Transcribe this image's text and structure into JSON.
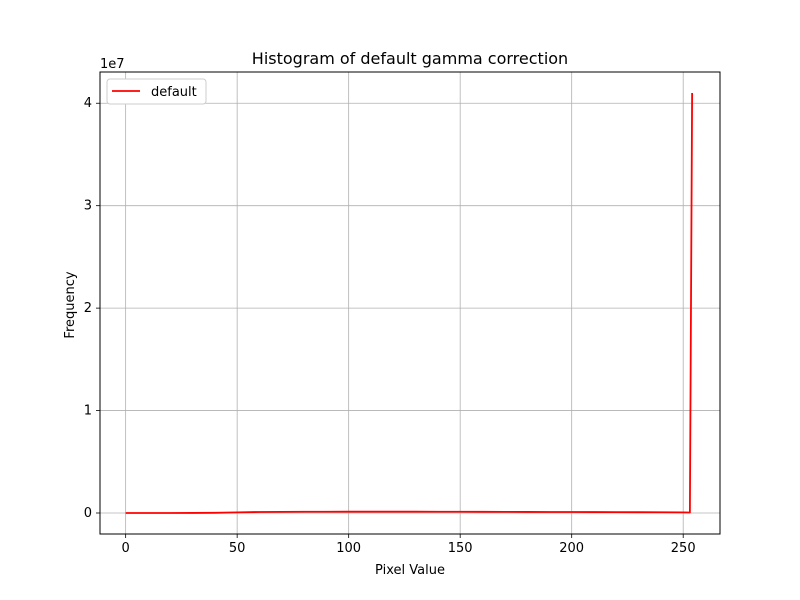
{
  "chart_data": {
    "type": "line",
    "title": "Histogram of default gamma correction",
    "xlabel": "Pixel Value",
    "ylabel": "Frequency",
    "y_scale_label": "1e7",
    "xlim": [
      -11.5,
      266.5
    ],
    "ylim": [
      -2050000,
      43050000
    ],
    "x_ticks": [
      0,
      50,
      100,
      150,
      200,
      250
    ],
    "x_tick_labels": [
      "0",
      "50",
      "100",
      "150",
      "200",
      "250"
    ],
    "y_ticks": [
      0,
      10000000,
      20000000,
      30000000,
      40000000
    ],
    "y_tick_labels": [
      "0",
      "1",
      "2",
      "3",
      "4"
    ],
    "grid": true,
    "legend_position": "top-left",
    "series": [
      {
        "name": "default",
        "color": "#ff0000",
        "x": [
          0,
          10,
          20,
          30,
          40,
          50,
          60,
          70,
          80,
          90,
          100,
          110,
          120,
          130,
          140,
          150,
          160,
          170,
          180,
          190,
          200,
          210,
          220,
          230,
          240,
          250,
          253,
          254
        ],
        "y": [
          0,
          0,
          0,
          5000,
          20000,
          60000,
          100000,
          110000,
          120000,
          125000,
          130000,
          130000,
          130000,
          130000,
          125000,
          120000,
          115000,
          110000,
          105000,
          100000,
          95000,
          90000,
          85000,
          80000,
          70000,
          60000,
          50000,
          41000000
        ]
      }
    ]
  }
}
